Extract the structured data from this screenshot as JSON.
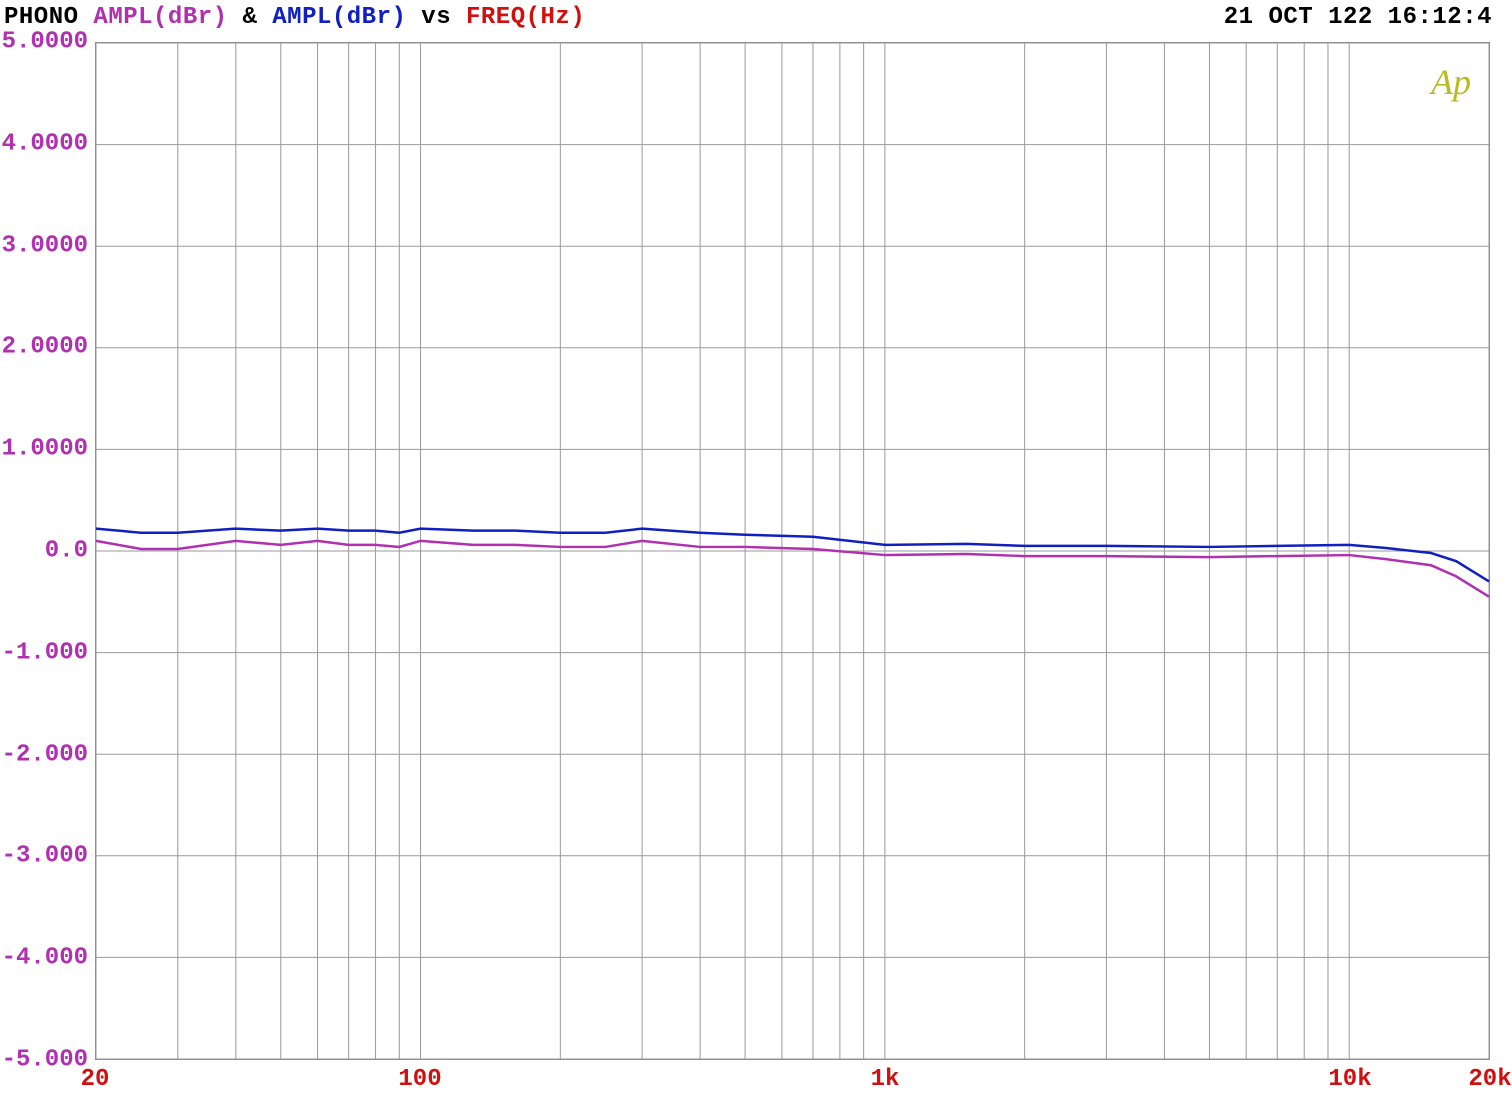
{
  "header": {
    "title_phono": "PHONO",
    "title_ampl1": "AMPL(dBr)",
    "title_amp_sep": " & ",
    "title_ampl2": "AMPL(dBr)",
    "title_vs": " vs ",
    "title_freq": "FREQ(Hz)",
    "timestamp": "21 OCT 122 16:12:4"
  },
  "colors": {
    "phono": "#000000",
    "series1": "#b030b0",
    "amp_sep": "#000000",
    "series2": "#1020c0",
    "vs": "#000000",
    "freq": "#d01010",
    "ytick": "#b030b0",
    "xtick": "#d01010",
    "grid": "#999999",
    "background": "#ffffff",
    "watermark": "#b8ba20",
    "timestamp": "#000000"
  },
  "watermark": "Ap",
  "chart": {
    "type": "line",
    "xscale": "log",
    "xlim": [
      20,
      20000
    ],
    "ylim": [
      -5,
      5
    ],
    "ytick_labels": [
      "5.0000",
      "4.0000",
      "3.0000",
      "2.0000",
      "1.0000",
      "0.0",
      "-1.000",
      "-2.000",
      "-3.000",
      "-4.000",
      "-5.000"
    ],
    "ytick_values": [
      5,
      4,
      3,
      2,
      1,
      0,
      -1,
      -2,
      -3,
      -4,
      -5
    ],
    "xtick_labels": [
      "20",
      "100",
      "1k",
      "10k",
      "20k"
    ],
    "xtick_values": [
      20,
      100,
      1000,
      10000,
      20000
    ],
    "xgrid_values": [
      20,
      30,
      40,
      50,
      60,
      70,
      80,
      90,
      100,
      200,
      300,
      400,
      500,
      600,
      700,
      800,
      900,
      1000,
      2000,
      3000,
      4000,
      5000,
      6000,
      7000,
      8000,
      9000,
      10000,
      20000
    ],
    "line_width": 2.5,
    "series": [
      {
        "name": "series-blue",
        "color": "#1020c0",
        "x": [
          20,
          25,
          30,
          40,
          50,
          60,
          70,
          80,
          90,
          100,
          130,
          160,
          200,
          250,
          300,
          400,
          500,
          700,
          1000,
          1500,
          2000,
          3000,
          5000,
          7000,
          10000,
          12000,
          15000,
          17000,
          20000
        ],
        "y": [
          0.22,
          0.18,
          0.18,
          0.22,
          0.2,
          0.22,
          0.2,
          0.2,
          0.18,
          0.22,
          0.2,
          0.2,
          0.18,
          0.18,
          0.22,
          0.18,
          0.16,
          0.14,
          0.06,
          0.07,
          0.05,
          0.05,
          0.04,
          0.05,
          0.06,
          0.03,
          -0.02,
          -0.1,
          -0.3
        ]
      },
      {
        "name": "series-magenta",
        "color": "#b030b0",
        "x": [
          20,
          25,
          30,
          40,
          50,
          60,
          70,
          80,
          90,
          100,
          130,
          160,
          200,
          250,
          300,
          400,
          500,
          700,
          1000,
          1500,
          2000,
          3000,
          5000,
          7000,
          10000,
          12000,
          15000,
          17000,
          20000
        ],
        "y": [
          0.1,
          0.02,
          0.02,
          0.1,
          0.06,
          0.1,
          0.06,
          0.06,
          0.04,
          0.1,
          0.06,
          0.06,
          0.04,
          0.04,
          0.1,
          0.04,
          0.04,
          0.02,
          -0.04,
          -0.03,
          -0.05,
          -0.05,
          -0.06,
          -0.05,
          -0.04,
          -0.08,
          -0.14,
          -0.25,
          -0.45
        ]
      }
    ]
  },
  "fonts": {
    "header_size": 24,
    "tick_size": 24,
    "watermark_size": 36
  }
}
